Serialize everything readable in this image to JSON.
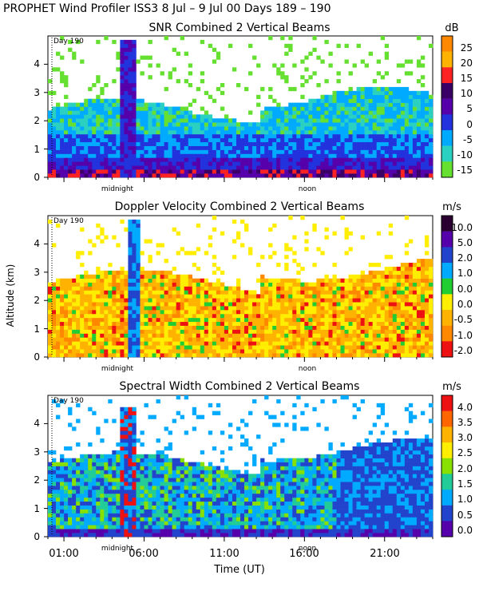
{
  "figure": {
    "title": "PROPHET Wind Profiler ISS3    8 Jul –  9 Jul 00 Days 189 – 190",
    "ylabel": "Altitude (km)",
    "xlabel": "Time (UT)",
    "xticks": [
      "01:00",
      "06:00",
      "11:00",
      "16:00",
      "21:00"
    ],
    "xtick_hours": [
      1,
      6,
      11,
      16,
      21
    ],
    "time_range_hours": [
      0,
      24
    ],
    "annotations": {
      "midnight": "midnight",
      "noon": "noon",
      "day": "Day 190"
    }
  },
  "chart_data": [
    {
      "type": "heatmap",
      "title": "SNR Combined 2 Vertical Beams",
      "colorbar_unit": "dB",
      "colorbar_ticks": [
        "25",
        "20",
        "15",
        "10",
        "5",
        "0",
        "-5",
        "-10",
        "-15"
      ],
      "colors": [
        "#ff8800",
        "#ffb300",
        "#ff2222",
        "#3a0066",
        "#5500aa",
        "#2233dd",
        "#00aaff",
        "#2ad0c0",
        "#66e030"
      ],
      "ylim": [
        0,
        5
      ],
      "yticks": [
        "0",
        "1",
        "2",
        "3",
        "4"
      ]
    },
    {
      "type": "heatmap",
      "title": "Doppler Velocity Combined 2 Vertical Beams",
      "colorbar_unit": "m/s",
      "colorbar_ticks": [
        "10.0",
        "5.0",
        "2.0",
        "1.0",
        "0.0",
        "0.0",
        "-0.5",
        "-1.0",
        "-2.0"
      ],
      "colors": [
        "#2a0030",
        "#5500aa",
        "#2244cc",
        "#00aaff",
        "#22cc33",
        "#ffee00",
        "#ffb300",
        "#ff8800",
        "#ee1111"
      ],
      "ylim": [
        0,
        5
      ],
      "yticks": [
        "0",
        "1",
        "2",
        "3",
        "4"
      ]
    },
    {
      "type": "heatmap",
      "title": "Spectral Width Combined 2 Vertical Beams",
      "colorbar_unit": "m/s",
      "colorbar_ticks": [
        "4.0",
        "3.5",
        "3.0",
        "2.5",
        "2.0",
        "1.5",
        "1.0",
        "0.5",
        "0.0"
      ],
      "colors": [
        "#ee1111",
        "#ff6600",
        "#ffb300",
        "#ffee00",
        "#88e000",
        "#22cc99",
        "#00aaff",
        "#2244cc",
        "#5500aa"
      ],
      "ylim": [
        0,
        5
      ],
      "yticks": [
        "0",
        "1",
        "2",
        "3",
        "4"
      ]
    }
  ]
}
